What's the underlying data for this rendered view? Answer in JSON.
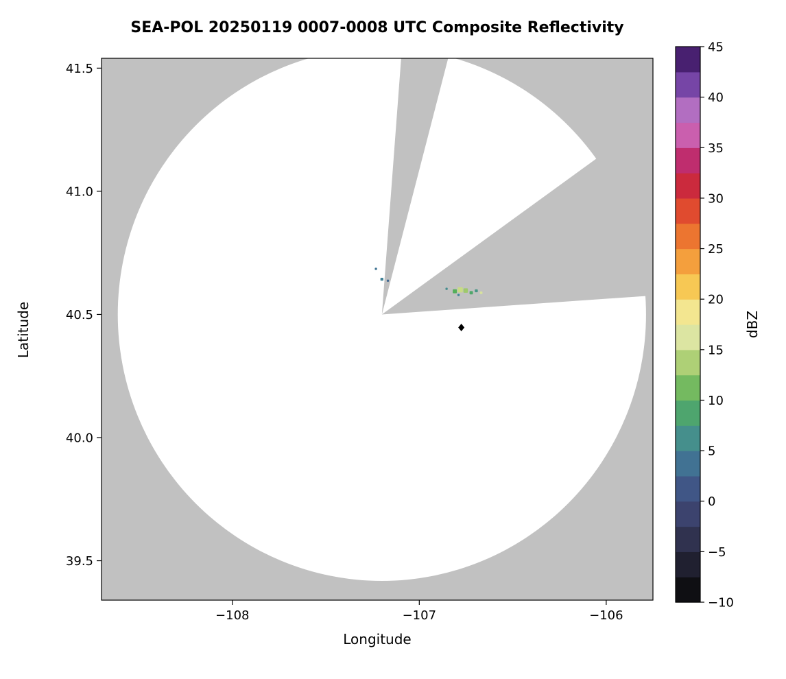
{
  "chart_data": {
    "type": "heatmap",
    "subtype": "radar-composite-reflectivity-ppi",
    "title": "SEA-POL 20250119 0007-0008 UTC Composite Reflectivity",
    "xlabel": "Longitude",
    "ylabel": "Latitude",
    "xlim": [
      -108.7,
      -105.75
    ],
    "ylim": [
      39.34,
      41.54
    ],
    "xticks": [
      -108,
      -107,
      -106
    ],
    "xtick_labels": [
      "−108",
      "−107",
      "−106"
    ],
    "yticks": [
      39.5,
      40.0,
      40.5,
      41.0,
      41.5
    ],
    "ytick_labels": [
      "39.5",
      "40.0",
      "40.5",
      "41.0",
      "41.5"
    ],
    "grid": false,
    "colors": {
      "masked_region": "#c1c1c1",
      "coverage_region": "#ffffff",
      "axis": "#000000",
      "text": "#000000"
    },
    "radar": {
      "center_lon": -107.2,
      "center_lat": 40.5,
      "range_lon_deg": 1.413,
      "range_lat_deg": 1.082,
      "blocked_sectors_azimuth_deg": [
        {
          "start": 4.3,
          "end": 14.5
        },
        {
          "start": 54.0,
          "end": 86.0
        }
      ]
    },
    "site_marker": {
      "lon": -106.775,
      "lat": 40.447,
      "symbol": "diamond",
      "color": "#000000"
    },
    "echoes": [
      {
        "lon": -107.232,
        "lat": 40.685,
        "dbz": 4,
        "size_deg": 0.012
      },
      {
        "lon": -107.2,
        "lat": 40.643,
        "dbz": 5,
        "size_deg": 0.016
      },
      {
        "lon": -107.168,
        "lat": 40.637,
        "dbz": 3,
        "size_deg": 0.012
      },
      {
        "lon": -106.854,
        "lat": 40.604,
        "dbz": 6,
        "size_deg": 0.012
      },
      {
        "lon": -106.81,
        "lat": 40.594,
        "dbz": 10,
        "size_deg": 0.022
      },
      {
        "lon": -106.781,
        "lat": 40.6,
        "dbz": 15,
        "size_deg": 0.028
      },
      {
        "lon": -106.752,
        "lat": 40.597,
        "dbz": 13,
        "size_deg": 0.024
      },
      {
        "lon": -106.722,
        "lat": 40.588,
        "dbz": 9,
        "size_deg": 0.018
      },
      {
        "lon": -106.695,
        "lat": 40.596,
        "dbz": 7,
        "size_deg": 0.016
      },
      {
        "lon": -106.79,
        "lat": 40.579,
        "dbz": 5,
        "size_deg": 0.012
      },
      {
        "lon": -106.669,
        "lat": 40.588,
        "dbz": 16,
        "size_deg": 0.014
      }
    ],
    "colorbar": {
      "label": "dBZ",
      "min": -10,
      "max": 45,
      "step": 2.5,
      "ticks": [
        -10,
        -5,
        0,
        5,
        10,
        15,
        20,
        25,
        30,
        35,
        40,
        45
      ],
      "tick_labels": [
        "−10",
        "−5",
        "0",
        "5",
        "10",
        "15",
        "20",
        "25",
        "30",
        "35",
        "40",
        "45"
      ],
      "stops": [
        {
          "value": -10,
          "color": "#060606"
        },
        {
          "value": -7.5,
          "color": "#17171f"
        },
        {
          "value": -5,
          "color": "#292940"
        },
        {
          "value": -2.5,
          "color": "#373b5e"
        },
        {
          "value": 0,
          "color": "#404a7d"
        },
        {
          "value": 2.5,
          "color": "#40628f"
        },
        {
          "value": 5,
          "color": "#418297"
        },
        {
          "value": 7.5,
          "color": "#489b81"
        },
        {
          "value": 10,
          "color": "#54af5a"
        },
        {
          "value": 12.5,
          "color": "#94c566"
        },
        {
          "value": 15,
          "color": "#c8db85"
        },
        {
          "value": 17.5,
          "color": "#efefbe"
        },
        {
          "value": 20,
          "color": "#f6dd61"
        },
        {
          "value": 22.5,
          "color": "#f7b347"
        },
        {
          "value": 25,
          "color": "#f18a33"
        },
        {
          "value": 27.5,
          "color": "#e65f2c"
        },
        {
          "value": 30,
          "color": "#d93732"
        },
        {
          "value": 32.5,
          "color": "#bd1c48"
        },
        {
          "value": 35,
          "color": "#c03e93"
        },
        {
          "value": 37.5,
          "color": "#d47fc9"
        },
        {
          "value": 40,
          "color": "#8f5cb9"
        },
        {
          "value": 42.5,
          "color": "#5d2e92"
        },
        {
          "value": 45,
          "color": "#32124e"
        }
      ]
    }
  }
}
